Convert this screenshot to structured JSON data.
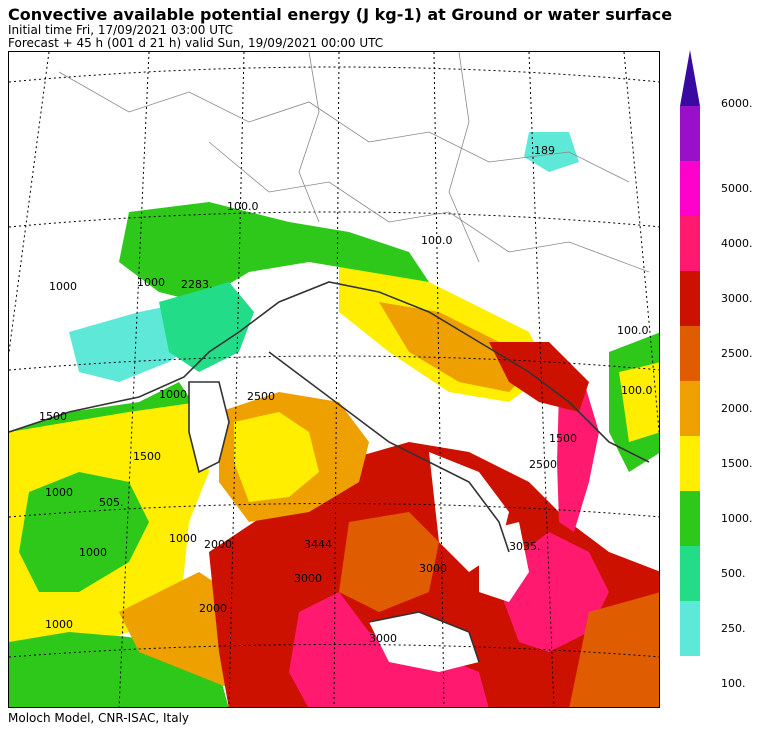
{
  "header": {
    "title": "Convective available potential energy (J kg-1) at Ground or water surface",
    "initial_time": "Initial time  Fri, 17/09/2021  03:00 UTC",
    "forecast": "Forecast  +  45 h  (001 d 21 h)  valid Sun, 19/09/2021 00:00 UTC"
  },
  "footer": {
    "credit": "Moloch Model, CNR-ISAC, Italy"
  },
  "legend": {
    "levels": [
      {
        "value": 100,
        "label": "100.",
        "color": "#5ee8d8"
      },
      {
        "value": 250,
        "label": "250.",
        "color": "#22dc88"
      },
      {
        "value": 500,
        "label": "500.",
        "color": "#2ec81a"
      },
      {
        "value": 1000,
        "label": "1000.",
        "color": "#ffee00"
      },
      {
        "value": 1500,
        "label": "1500.",
        "color": "#eea000"
      },
      {
        "value": 2000,
        "label": "2000.",
        "color": "#e05c00"
      },
      {
        "value": 2500,
        "label": "2500.",
        "color": "#cc1100"
      },
      {
        "value": 3000,
        "label": "3000.",
        "color": "#ff1a70"
      },
      {
        "value": 4000,
        "label": "4000.",
        "color": "#ff00cc"
      },
      {
        "value": 5000,
        "label": "5000.",
        "color": "#9a10c8"
      },
      {
        "value": 6000,
        "label": "6000.",
        "color": "#3a0aa0"
      }
    ]
  },
  "map": {
    "contour_labels": [
      "100.0",
      "100.0",
      "100.0",
      "100.0",
      "189",
      "2283.",
      "1000",
      "1000",
      "1500",
      "1500",
      "1000",
      "505.",
      "1000",
      "1000",
      "2500",
      "3444",
      "3000",
      "3000",
      "3035.",
      "1500",
      "1000",
      "2000",
      "1000",
      "2500",
      "2000",
      "3000"
    ]
  }
}
